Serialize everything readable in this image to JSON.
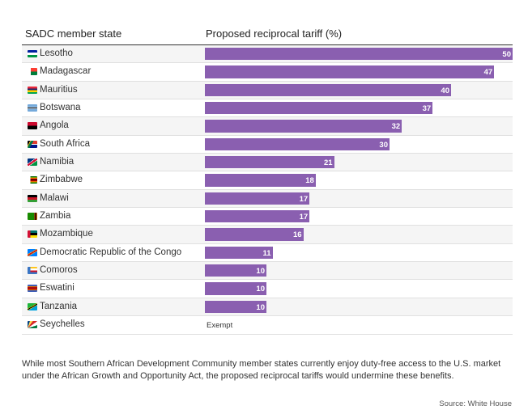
{
  "chart_data": {
    "type": "bar",
    "orientation": "horizontal",
    "column_headers": [
      "SADC member state",
      "Proposed reciprocal tariff (%)"
    ],
    "categories": [
      "Lesotho",
      "Madagascar",
      "Mauritius",
      "Botswana",
      "Angola",
      "South Africa",
      "Namibia",
      "Zimbabwe",
      "Malawi",
      "Zambia",
      "Mozambique",
      "Democratic Republic of the Congo",
      "Comoros",
      "Eswatini",
      "Tanzania",
      "Seychelles"
    ],
    "values": [
      50,
      47,
      40,
      37,
      32,
      30,
      21,
      18,
      17,
      17,
      16,
      11,
      10,
      10,
      10,
      null
    ],
    "labels": [
      "50",
      "47",
      "40",
      "37",
      "32",
      "30",
      "21",
      "18",
      "17",
      "17",
      "16",
      "11",
      "10",
      "10",
      "10",
      "Exempt"
    ],
    "xlim": [
      0,
      50
    ],
    "bar_color": "#8a5fb0",
    "flags": [
      {
        "css": "linear-gradient(to bottom, #00209f 0 33%, #ffffff 33% 66%, #009543 66%)"
      },
      {
        "css": "linear-gradient(to right, #ffffff 0 33%, transparent 33%), linear-gradient(to bottom, #fc3d32 0 50%, #007e3a 50%)"
      },
      {
        "css": "linear-gradient(to bottom, #ea2839 0 25%, #1a206d 25% 50%, #ffd500 50% 75%, #00a551 75%)"
      },
      {
        "css": "linear-gradient(to bottom, #75aadb 0 38%, #ffffff 38% 44%, #000000 44% 56%, #ffffff 56% 62%, #75aadb 62%)"
      },
      {
        "css": "linear-gradient(to bottom, #cc092f 0 50%, #000000 50%)"
      },
      {
        "css": "linear-gradient(120deg, #000000 0 20%, #ffb612 20% 26%, #007749 26% 44%, transparent 44%), linear-gradient(to bottom, #e03c31 0 45%, #ffffff 45% 55%, #001489 55%)"
      },
      {
        "css": "linear-gradient(145deg, #003580 0 38%, #ffffff 38% 42%, #d21034 42% 58%, #ffffff 58% 62%, #009543 62%)"
      },
      {
        "css": "linear-gradient(to right, #ffffff 0 30%, transparent 30%), linear-gradient(to bottom, #006400 0 15%, #ffd200 15% 29%, #d40000 29% 43%, #000000 43% 57%, #d40000 57% 71%, #ffd200 71% 85%, #006400 85%)"
      },
      {
        "css": "linear-gradient(to bottom, #000000 0 33%, #ce1126 33% 66%, #339e35 66%)"
      },
      {
        "css": "linear-gradient(to right, #198a00 0 70%, #de2010 70% 80%, #000000 80% 90%, #ef7d00 90%)"
      },
      {
        "css": "linear-gradient(to right, #d21034 0 30%, transparent 30%), linear-gradient(to bottom, #007168 0 32%, #ffffff 32% 36%, #000000 36% 64%, #ffffff 64% 68%, #fce100 68%)"
      },
      {
        "css": "linear-gradient(150deg, #007fff 0 40%, #f7d618 40% 44%, #ce1021 44% 56%, #f7d618 56% 60%, #007fff 60%)"
      },
      {
        "css": "linear-gradient(to right, #3a75c4 0 30%, transparent 30%), linear-gradient(to bottom, #ffc61e 0 25%, #ffffff 25% 50%, #ce1126 50% 75%, #3a75c4 75%)"
      },
      {
        "css": "linear-gradient(to bottom, #3e5eb9 0 20%, #ffd900 20% 27%, #b10c0c 27% 73%, #ffd900 73% 80%, #3e5eb9 80%)"
      },
      {
        "css": "linear-gradient(150deg, #1eb53a 0 42%, #fcd116 42% 46%, #000000 46% 54%, #fcd116 54% 58%, #00a3dd 58%)"
      },
      {
        "css": "conic-gradient(from 0deg at 0% 100%, #003f87 0 18deg, #fcd856 18deg 36deg, #d62828 36deg 54deg, #ffffff 54deg 72deg, #007a3d 72deg 90deg)"
      }
    ]
  },
  "note": "While most Southern African Development Community member states currently enjoy duty-free access to the U.S. market under the African Growth and Opportunity Act, the proposed reciprocal tariffs would undermine these benefits.",
  "source": "Source: White House"
}
